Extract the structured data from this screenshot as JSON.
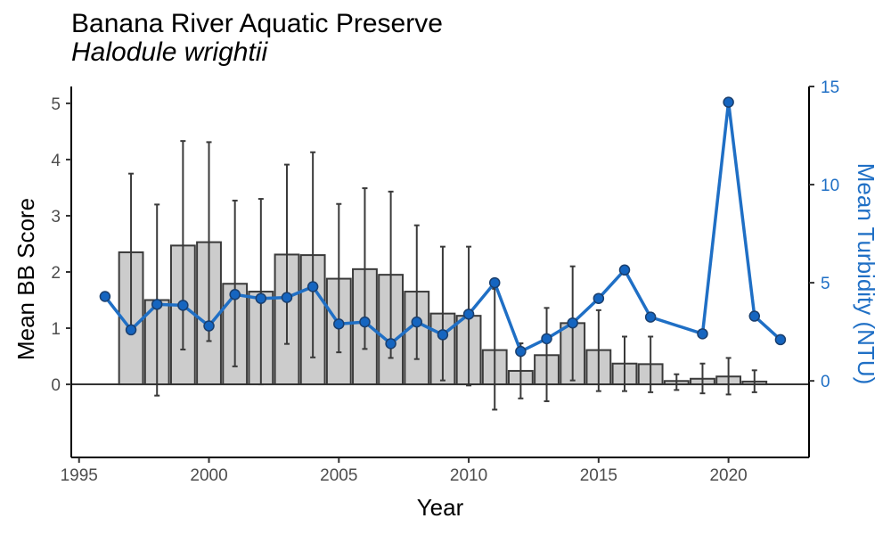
{
  "chart_data": {
    "type": "bar+line",
    "title": "Banana River Aquatic Preserve",
    "subtitle": "Halodule wrightii",
    "xlabel": "Year",
    "ylabel": "Mean BB Score",
    "y2label": "Mean Turbidity (NTU)",
    "xlim": [
      1994.7,
      2023.1
    ],
    "ylim": [
      -1.3,
      5.3
    ],
    "y2lim": [
      -3.9,
      15.0
    ],
    "xticks": [
      1995,
      2000,
      2005,
      2010,
      2015,
      2020
    ],
    "yticks": [
      0,
      1,
      2,
      3,
      4,
      5
    ],
    "y2ticks": [
      0,
      5,
      10,
      15
    ],
    "grid": false,
    "colors": {
      "bars": "#cccccc",
      "bar_edge": "#3a3a3a",
      "turbidity": "#1f6fc5",
      "turbidity_point": "#1565c0"
    },
    "series": [
      {
        "name": "Mean BB Score",
        "type": "bar",
        "x": [
          1997,
          1998,
          1999,
          2000,
          2001,
          2002,
          2003,
          2004,
          2005,
          2006,
          2007,
          2008,
          2009,
          2010,
          2011,
          2012,
          2013,
          2014,
          2015,
          2016,
          2017,
          2018,
          2019,
          2020,
          2021
        ],
        "values": [
          2.35,
          1.5,
          2.47,
          2.53,
          1.79,
          1.65,
          2.31,
          2.3,
          1.88,
          2.05,
          1.95,
          1.65,
          1.26,
          1.22,
          0.61,
          0.24,
          0.52,
          1.09,
          0.61,
          0.37,
          0.36,
          0.06,
          0.1,
          0.14,
          0.05
        ],
        "error_low": [
          0.95,
          -0.2,
          0.62,
          0.77,
          0.32,
          0.0,
          0.72,
          0.48,
          0.57,
          0.63,
          0.47,
          0.45,
          0.07,
          -0.02,
          -0.45,
          -0.25,
          -0.3,
          0.07,
          -0.12,
          -0.12,
          -0.14,
          -0.1,
          -0.16,
          -0.18,
          -0.14
        ],
        "error_high": [
          3.75,
          3.2,
          4.33,
          4.31,
          3.27,
          3.3,
          3.91,
          4.13,
          3.21,
          3.49,
          3.43,
          2.83,
          2.45,
          2.45,
          1.7,
          0.73,
          1.36,
          2.1,
          1.32,
          0.85,
          0.85,
          0.18,
          0.37,
          0.47,
          0.25
        ]
      },
      {
        "name": "Mean Turbidity (NTU)",
        "type": "line",
        "axis": "right",
        "x": [
          1996,
          1997,
          1998,
          1999,
          2000,
          2001,
          2002,
          2003,
          2004,
          2005,
          2006,
          2007,
          2008,
          2009,
          2010,
          2011,
          2012,
          2013,
          2014,
          2015,
          2016,
          2017,
          2019,
          2020,
          2021,
          2022
        ],
        "values": [
          4.3,
          2.6,
          3.9,
          3.85,
          2.8,
          4.4,
          4.2,
          4.25,
          4.8,
          2.9,
          3.0,
          1.9,
          3.0,
          2.35,
          3.4,
          5.0,
          1.5,
          2.15,
          2.95,
          4.2,
          5.65,
          3.25,
          2.4,
          14.2,
          3.3,
          2.1
        ]
      }
    ]
  }
}
